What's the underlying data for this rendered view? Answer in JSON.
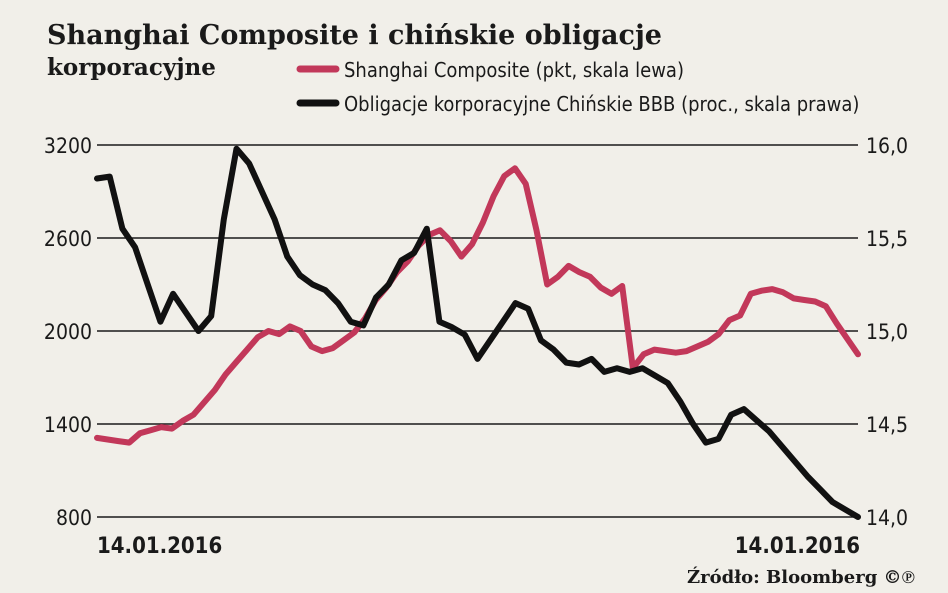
{
  "chart_data": {
    "type": "line",
    "title_line1": "Shanghai Composite i chińskie obligacje",
    "title_line2": "korporacyjne",
    "legend": [
      {
        "label": "Shanghai Composite (pkt, skala lewa)",
        "color": "#c2385a"
      },
      {
        "label": "Obligacje korporacyjne Chińskie BBB (proc., skala prawa)",
        "color": "#111111"
      }
    ],
    "left_axis": {
      "ticks": [
        "3200",
        "2600",
        "2000",
        "1400",
        "800"
      ],
      "min": 800,
      "max": 3200
    },
    "right_axis": {
      "ticks": [
        "16,0",
        "15,5",
        "15,0",
        "14,5",
        "14,0"
      ],
      "min": 14.0,
      "max": 16.0
    },
    "x_start_label": "14.01.2016",
    "x_end_label": "14.01.2016",
    "source": "Źródło: Bloomberg ©℗",
    "grid": "horizontal",
    "series": [
      {
        "name": "Shanghai Composite (pkt, skala lewa)",
        "axis": "left",
        "color": "#c2385a",
        "values": [
          1310,
          1300,
          1290,
          1280,
          1340,
          1360,
          1380,
          1370,
          1420,
          1460,
          1540,
          1620,
          1720,
          1800,
          1880,
          1960,
          2000,
          1980,
          2030,
          2000,
          1900,
          1870,
          1890,
          1940,
          1990,
          2080,
          2200,
          2280,
          2380,
          2450,
          2550,
          2620,
          2650,
          2580,
          2480,
          2560,
          2700,
          2870,
          3000,
          3050,
          2950,
          2650,
          2300,
          2350,
          2420,
          2380,
          2350,
          2280,
          2240,
          2290,
          1760,
          1850,
          1880,
          1870,
          1860,
          1870,
          1900,
          1930,
          1980,
          2070,
          2100,
          2240,
          2260,
          2270,
          2250,
          2210,
          2200,
          2190,
          2160,
          2050,
          1950,
          1850
        ]
      },
      {
        "name": "Obligacje korporacyjne Chińskie BBB (proc., skala prawa)",
        "axis": "right",
        "color": "#111111",
        "values": [
          15.82,
          15.83,
          15.55,
          15.45,
          15.25,
          15.05,
          15.2,
          15.1,
          15.0,
          15.08,
          15.6,
          15.98,
          15.9,
          15.75,
          15.6,
          15.4,
          15.3,
          15.25,
          15.22,
          15.15,
          15.05,
          15.03,
          15.18,
          15.25,
          15.38,
          15.42,
          15.55,
          15.05,
          15.02,
          14.98,
          14.85,
          14.95,
          15.05,
          15.15,
          15.12,
          14.95,
          14.9,
          14.83,
          14.82,
          14.85,
          14.78,
          14.8,
          14.78,
          14.8,
          14.76,
          14.72,
          14.62,
          14.5,
          14.4,
          14.42,
          14.55,
          14.58,
          14.52,
          14.46,
          14.38,
          14.3,
          14.22,
          14.15,
          14.08,
          14.04,
          14.0
        ]
      }
    ]
  }
}
